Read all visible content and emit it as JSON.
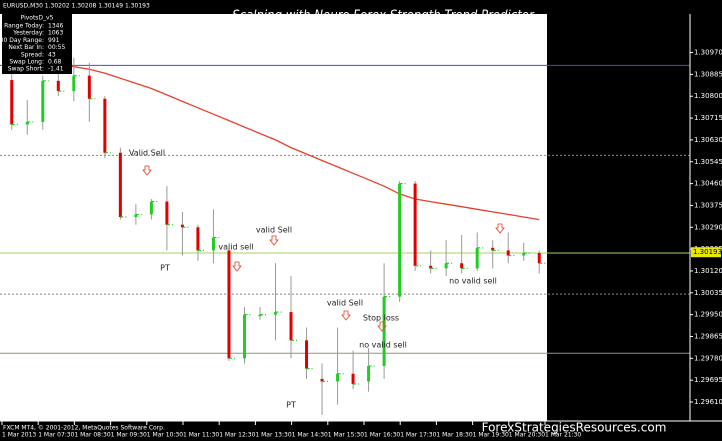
{
  "symbol_info": "EURUSD,M30  1.30202  1.30208  1.30149  1.30193",
  "info_box": {
    "title": "PivotsD_v5",
    "rows": [
      [
        "Range Today:",
        "1346"
      ],
      [
        "Yesterday:",
        "1063"
      ],
      [
        "30 Day Range:",
        "991"
      ],
      [
        "Next Bar In:",
        "00:55"
      ],
      [
        "Spread:",
        "43"
      ],
      [
        "Swap Long:",
        "0.68"
      ],
      [
        "Swap Short:",
        "-1.41"
      ]
    ]
  },
  "footer": {
    "copyright": "FXCM MT4, © 2001-2012, MetaQuotes Software Corp.",
    "brand": "ForexStrategiesResources.com"
  },
  "chart_data": {
    "type": "candlestick",
    "title": "Scalping with Neuro Forex Strength Trend Predictor",
    "time_labels": [
      "1 Mar 2013",
      "1 Mar 07:30",
      "1 Mar 08:30",
      "1 Mar 09:30",
      "1 Mar 10:30",
      "1 Mar 11:30",
      "1 Mar 12:30",
      "1 Mar 13:30",
      "1 Mar 14:30",
      "1 Mar 15:30",
      "1 Mar 16:30",
      "1 Mar 17:30",
      "1 Mar 18:30",
      "1 Mar 19:30",
      "1 Mar 20:30",
      "1 Mar 21:30"
    ],
    "open": [
      1.30863,
      1.3069,
      1.307,
      1.3086,
      1.3082,
      1.3088,
      1.3079,
      1.3058,
      1.3033,
      1.3034,
      1.3039,
      1.303,
      1.3029,
      1.302,
      1.302,
      1.2978,
      1.2995,
      1.2995,
      1.2996,
      1.2985,
      1.297,
      1.2969,
      1.2972,
      1.2969,
      1.2975,
      1.3002,
      1.3046,
      1.3014,
      1.3013,
      1.3015,
      1.3013,
      1.3021,
      1.302,
      1.3018,
      1.3019
    ],
    "high": [
      1.309,
      1.30785,
      1.3088,
      1.309,
      1.3095,
      1.3093,
      1.308,
      1.306,
      1.3038,
      1.304,
      1.3045,
      1.3035,
      1.303,
      1.3036,
      1.3021,
      1.2998,
      1.2998,
      1.3015,
      1.301,
      1.299,
      1.2976,
      1.299,
      1.2981,
      1.2982,
      1.3015,
      1.3047,
      1.3047,
      1.302,
      1.3024,
      1.3026,
      1.3027,
      1.3024,
      1.3027,
      1.3023,
      1.302
    ],
    "low": [
      1.30669,
      1.3065,
      1.3067,
      1.308,
      1.3078,
      1.307,
      1.3056,
      1.3032,
      1.303,
      1.3032,
      1.302,
      1.3018,
      1.3016,
      1.3015,
      1.2977,
      1.2976,
      1.2993,
      1.2985,
      1.2978,
      1.297,
      1.2956,
      1.296,
      1.2966,
      1.2965,
      1.297,
      1.3,
      1.3012,
      1.3011,
      1.301,
      1.3011,
      1.3012,
      1.3013,
      1.3015,
      1.3016,
      1.3011
    ],
    "close": [
      1.3069,
      1.307,
      1.3086,
      1.3082,
      1.3088,
      1.3079,
      1.3058,
      1.3033,
      1.3034,
      1.3039,
      1.303,
      1.3029,
      1.302,
      1.3025,
      1.2978,
      1.2995,
      1.2995,
      1.2996,
      1.2985,
      1.2974,
      1.2969,
      1.2972,
      1.2968,
      1.2975,
      1.3002,
      1.3046,
      1.3014,
      1.3013,
      1.3015,
      1.3013,
      1.3021,
      1.302,
      1.3018,
      1.3019,
      1.3015
    ],
    "up_color": "#22cc22",
    "down_color": "#e00000",
    "wick_color": "#999999",
    "moving_average": {
      "color": "#e8402a",
      "values": [
        1.3094,
        1.30935,
        1.3093,
        1.30925,
        1.30915,
        1.30905,
        1.3089,
        1.3087,
        1.3085,
        1.3083,
        1.30805,
        1.3078,
        1.30755,
        1.3073,
        1.30705,
        1.3068,
        1.30655,
        1.3063,
        1.306,
        1.30575,
        1.3055,
        1.30525,
        1.305,
        1.30475,
        1.3045,
        1.3042,
        1.304,
        1.3039,
        1.3038,
        1.3037,
        1.3036,
        1.3035,
        1.3034,
        1.3033,
        1.3032
      ]
    },
    "levels": [
      {
        "value": 1.3092,
        "color": "#3355cc",
        "dashed": false
      },
      {
        "value": 1.3057,
        "color": "#888888",
        "dashed": true
      },
      {
        "value": 1.3019,
        "color": "#aad060",
        "dashed": false
      },
      {
        "value": 1.3003,
        "color": "#888888",
        "dashed": true
      },
      {
        "value": 1.298,
        "color": "#889977",
        "dashed": false
      }
    ],
    "current_price": {
      "value": 1.30193,
      "label": "1.30193",
      "color": "#e8e800"
    },
    "ylim": [
      1.2954,
      1.3112
    ],
    "yticks": [
      {
        "value": 1.2961,
        "label": "1.29610"
      },
      {
        "value": 1.29695,
        "label": "1.29695"
      },
      {
        "value": 1.2978,
        "label": "1.29780"
      },
      {
        "value": 1.29865,
        "label": "1.29865"
      },
      {
        "value": 1.2995,
        "label": "1.29950"
      },
      {
        "value": 1.30035,
        "label": "1.30035"
      },
      {
        "value": 1.3012,
        "label": "1.30120"
      },
      {
        "value": 1.30205,
        "label": "1.30205"
      },
      {
        "value": 1.3029,
        "label": "1.30290"
      },
      {
        "value": 1.30375,
        "label": "1.30375"
      },
      {
        "value": 1.3046,
        "label": "1.30460"
      },
      {
        "value": 1.30545,
        "label": "1.30545"
      },
      {
        "value": 1.3063,
        "label": "1.30630"
      },
      {
        "value": 1.30715,
        "label": "1.30715"
      },
      {
        "value": 1.308,
        "label": "1.30800"
      },
      {
        "value": 1.30885,
        "label": "1.30885"
      },
      {
        "value": 1.3097,
        "label": "1.30970"
      }
    ],
    "annotations": [
      "Valid Sell",
      "PT",
      "valid sell",
      "valid Sell",
      "valid Sell",
      "Stop loss",
      "no valid sell",
      "PT",
      "no valid sell"
    ]
  }
}
